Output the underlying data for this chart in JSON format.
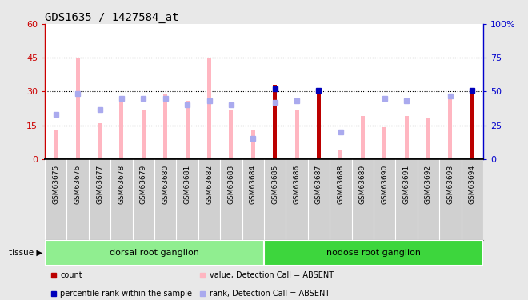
{
  "title": "GDS1635 / 1427584_at",
  "samples": [
    "GSM63675",
    "GSM63676",
    "GSM63677",
    "GSM63678",
    "GSM63679",
    "GSM63680",
    "GSM63681",
    "GSM63682",
    "GSM63683",
    "GSM63684",
    "GSM63685",
    "GSM63686",
    "GSM63687",
    "GSM63688",
    "GSM63689",
    "GSM63690",
    "GSM63691",
    "GSM63692",
    "GSM63693",
    "GSM63694"
  ],
  "pink_values": [
    13,
    45,
    16,
    28,
    22,
    29,
    26,
    45,
    22,
    13,
    0,
    22,
    0,
    4,
    19,
    14,
    19,
    18,
    27,
    0
  ],
  "light_blue_rank_left": [
    20,
    29,
    22,
    27,
    27,
    27,
    24,
    26,
    24,
    9,
    25,
    26,
    0,
    12,
    0,
    27,
    26,
    0,
    28,
    0
  ],
  "red_count_values": [
    0,
    0,
    0,
    0,
    0,
    0,
    0,
    0,
    0,
    0,
    33,
    0,
    31,
    0,
    0,
    0,
    0,
    0,
    0,
    31
  ],
  "blue_percentile_right": [
    0,
    0,
    0,
    0,
    0,
    0,
    0,
    0,
    0,
    0,
    52,
    0,
    51,
    0,
    0,
    0,
    0,
    0,
    0,
    51
  ],
  "tissue_groups": [
    {
      "label": "dorsal root ganglion",
      "start": 0,
      "end": 9,
      "color": "#90EE90"
    },
    {
      "label": "nodose root ganglion",
      "start": 10,
      "end": 19,
      "color": "#3DD63D"
    }
  ],
  "ylim_left": [
    0,
    60
  ],
  "ylim_right": [
    0,
    100
  ],
  "left_ticks": [
    0,
    15,
    30,
    45,
    60
  ],
  "right_ticks": [
    0,
    25,
    50,
    75,
    100
  ],
  "right_tick_labels": [
    "0",
    "25",
    "50",
    "75",
    "100%"
  ],
  "left_color": "#CC0000",
  "right_color": "#0000CC",
  "pink_color": "#FFB6C1",
  "light_blue_color": "#AAAAEE",
  "dark_red_color": "#BB0000",
  "blue_color": "#0000BB",
  "tissue_label": "tissue",
  "background_color": "#E8E8E8",
  "plot_bg_color": "#FFFFFF",
  "xtick_bg_color": "#D0D0D0"
}
